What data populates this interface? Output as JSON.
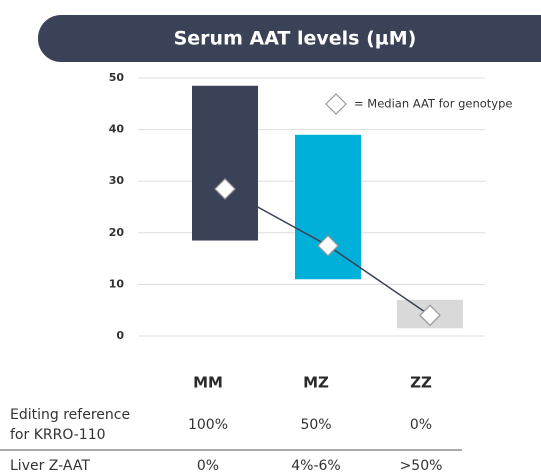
{
  "chart_data": {
    "type": "range-bar",
    "title": "Serum AAT levels (µM)",
    "categories": [
      "MM",
      "MZ",
      "ZZ"
    ],
    "low": [
      18.5,
      11,
      1.5
    ],
    "high": [
      48.5,
      39,
      7
    ],
    "colors": [
      "#3a4257",
      "#00b0d8",
      "#d9d9d9"
    ],
    "median": {
      "name": "= Median AAT for genotype",
      "values": [
        28.5,
        17.5,
        4
      ],
      "color": "#3a4257"
    },
    "ylim": [
      0,
      50
    ],
    "yticks": [
      0,
      10,
      20,
      30,
      40,
      50
    ],
    "grid": true
  },
  "table": {
    "rows": [
      {
        "label": [
          "Editing reference",
          "for KRRO-110"
        ],
        "cells": [
          "100%",
          "50%",
          "0%"
        ]
      },
      {
        "label": [
          "Liver Z-AAT"
        ],
        "cells": [
          "0%",
          "4%-6%",
          ">50%"
        ]
      }
    ]
  }
}
